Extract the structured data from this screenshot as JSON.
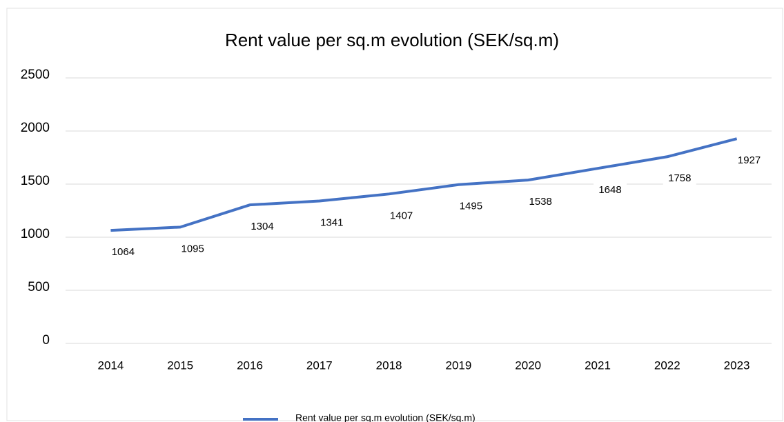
{
  "chart_data": {
    "type": "line",
    "title": "Rent value per sq.m evolution (SEK/sq.m)",
    "categories": [
      "2014",
      "2015",
      "2016",
      "2017",
      "2018",
      "2019",
      "2020",
      "2021",
      "2022",
      "2023"
    ],
    "series": [
      {
        "name": "Rent value per sq.m evolution (SEK/sq.m)",
        "color": "#4472c4",
        "values": [
          1064,
          1095,
          1304,
          1341,
          1407,
          1495,
          1538,
          1648,
          1758,
          1927
        ]
      }
    ],
    "ylim": [
      0,
      2500
    ],
    "yticks": [
      0,
      500,
      1000,
      1500,
      2000,
      2500
    ],
    "grid": true,
    "legend": "bottom"
  }
}
